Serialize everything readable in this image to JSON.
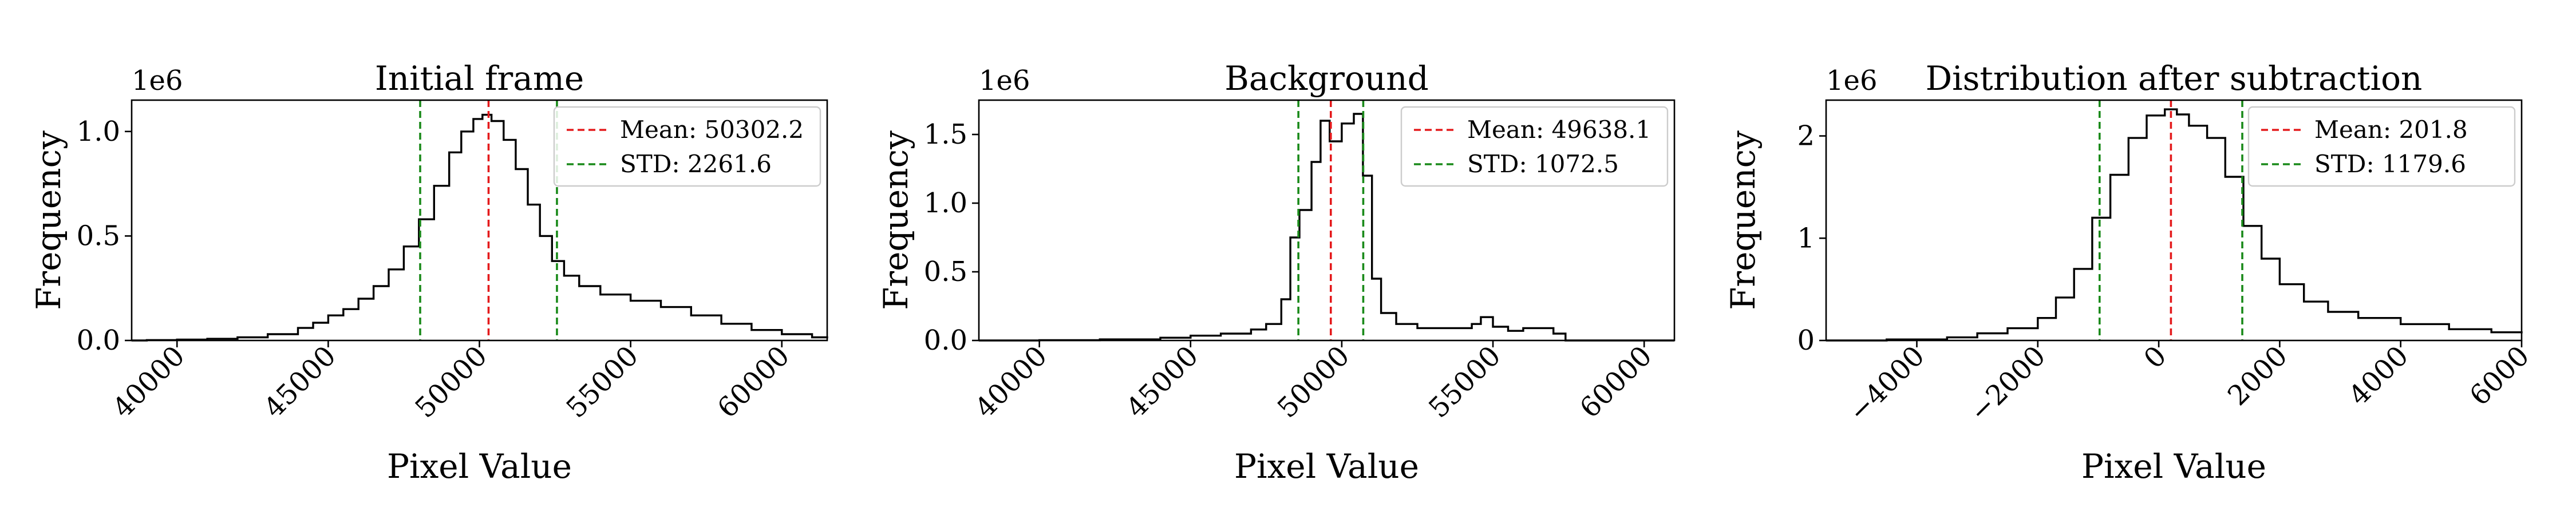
{
  "chart_data": [
    {
      "type": "histogram",
      "title": "Initial frame",
      "xlabel": "Pixel Value",
      "ylabel": "Frequency",
      "y_offset_text": "1e6",
      "xlim": [
        38500,
        61500
      ],
      "ylim": [
        0,
        1.15
      ],
      "xticks": [
        40000,
        45000,
        50000,
        55000,
        60000
      ],
      "xtick_labels": [
        "40000",
        "45000",
        "50000",
        "55000",
        "60000"
      ],
      "yticks": [
        0,
        0.5,
        1.0
      ],
      "ytick_labels": [
        "0.0",
        "0.5",
        "1.0"
      ],
      "xtick_rotation": 45,
      "histogram": {
        "color": "#000000",
        "points": [
          [
            38500,
            0.0
          ],
          [
            39000,
            0.002
          ],
          [
            40000,
            0.004
          ],
          [
            41000,
            0.008
          ],
          [
            42000,
            0.015
          ],
          [
            43000,
            0.03
          ],
          [
            44000,
            0.06
          ],
          [
            44500,
            0.085
          ],
          [
            45000,
            0.12
          ],
          [
            45500,
            0.15
          ],
          [
            46000,
            0.2
          ],
          [
            46500,
            0.26
          ],
          [
            47000,
            0.34
          ],
          [
            47500,
            0.45
          ],
          [
            48000,
            0.58
          ],
          [
            48500,
            0.74
          ],
          [
            49000,
            0.9
          ],
          [
            49400,
            1.0
          ],
          [
            49800,
            1.06
          ],
          [
            50100,
            1.08
          ],
          [
            50400,
            1.05
          ],
          [
            50800,
            0.96
          ],
          [
            51200,
            0.82
          ],
          [
            51600,
            0.65
          ],
          [
            52000,
            0.5
          ],
          [
            52400,
            0.38
          ],
          [
            52800,
            0.31
          ],
          [
            53300,
            0.26
          ],
          [
            54000,
            0.22
          ],
          [
            55000,
            0.19
          ],
          [
            56000,
            0.16
          ],
          [
            57000,
            0.12
          ],
          [
            58000,
            0.08
          ],
          [
            59000,
            0.05
          ],
          [
            60000,
            0.03
          ],
          [
            61000,
            0.015
          ],
          [
            61500,
            0.01
          ]
        ]
      },
      "vlines": [
        {
          "label": "Mean: 50302.2",
          "x": 50302.2,
          "color": "#e41a1c",
          "style": "dashed"
        },
        {
          "x": 48040.6,
          "color": "#1a8a1a",
          "style": "dashed"
        },
        {
          "label": "STD: 2261.6",
          "x": 52563.8,
          "color": "#1a8a1a",
          "style": "dashed"
        }
      ],
      "legend": {
        "placement": "upper right",
        "entries": [
          {
            "label": "Mean: 50302.2",
            "color": "#e41a1c",
            "style": "dashed"
          },
          {
            "label": "STD: 2261.6",
            "color": "#1a8a1a",
            "style": "dashed"
          }
        ]
      }
    },
    {
      "type": "histogram",
      "title": "Background",
      "xlabel": "Pixel Value",
      "ylabel": "Frequency",
      "y_offset_text": "1e6",
      "xlim": [
        38000,
        61000
      ],
      "ylim": [
        0,
        1.75
      ],
      "xticks": [
        40000,
        45000,
        50000,
        55000,
        60000
      ],
      "xtick_labels": [
        "40000",
        "45000",
        "50000",
        "55000",
        "60000"
      ],
      "yticks": [
        0,
        0.5,
        1.0,
        1.5
      ],
      "ytick_labels": [
        "0.0",
        "0.5",
        "1.0",
        "1.5"
      ],
      "xtick_rotation": 45,
      "histogram": {
        "color": "#000000",
        "points": [
          [
            38000,
            0.0
          ],
          [
            40000,
            0.002
          ],
          [
            42000,
            0.008
          ],
          [
            44000,
            0.02
          ],
          [
            45000,
            0.035
          ],
          [
            46000,
            0.05
          ],
          [
            47000,
            0.08
          ],
          [
            47500,
            0.12
          ],
          [
            48000,
            0.3
          ],
          [
            48300,
            0.75
          ],
          [
            48600,
            0.95
          ],
          [
            49000,
            1.3
          ],
          [
            49300,
            1.6
          ],
          [
            49600,
            1.45
          ],
          [
            50000,
            1.58
          ],
          [
            50400,
            1.65
          ],
          [
            50700,
            1.2
          ],
          [
            51000,
            0.45
          ],
          [
            51300,
            0.2
          ],
          [
            51800,
            0.12
          ],
          [
            52500,
            0.09
          ],
          [
            53500,
            0.09
          ],
          [
            54300,
            0.12
          ],
          [
            54600,
            0.17
          ],
          [
            55000,
            0.1
          ],
          [
            55500,
            0.07
          ],
          [
            56000,
            0.09
          ],
          [
            56500,
            0.09
          ],
          [
            57000,
            0.05
          ],
          [
            57400,
            0.0
          ],
          [
            61000,
            0.0
          ]
        ]
      },
      "vlines": [
        {
          "label": "Mean: 49638.1",
          "x": 49638.1,
          "color": "#e41a1c",
          "style": "dashed"
        },
        {
          "x": 48565.6,
          "color": "#1a8a1a",
          "style": "dashed"
        },
        {
          "label": "STD: 1072.5",
          "x": 50710.6,
          "color": "#1a8a1a",
          "style": "dashed"
        }
      ],
      "legend": {
        "placement": "upper right",
        "entries": [
          {
            "label": "Mean: 49638.1",
            "color": "#e41a1c",
            "style": "dashed"
          },
          {
            "label": "STD: 1072.5",
            "color": "#1a8a1a",
            "style": "dashed"
          }
        ]
      }
    },
    {
      "type": "histogram",
      "title": "Distribution after subtraction",
      "xlabel": "Pixel Value",
      "ylabel": "Frequency",
      "y_offset_text": "1e6",
      "xlim": [
        -5500,
        6000
      ],
      "ylim": [
        0,
        2.35
      ],
      "xticks": [
        -4000,
        -2000,
        0,
        2000,
        4000,
        6000
      ],
      "xtick_labels": [
        "−4000",
        "−2000",
        "0",
        "2000",
        "4000",
        "6000"
      ],
      "yticks": [
        0,
        1,
        2
      ],
      "ytick_labels": [
        "0",
        "1",
        "2"
      ],
      "xtick_rotation": 45,
      "histogram": {
        "color": "#000000",
        "points": [
          [
            -5500,
            0.0
          ],
          [
            -4500,
            0.01
          ],
          [
            -3500,
            0.03
          ],
          [
            -3000,
            0.07
          ],
          [
            -2500,
            0.12
          ],
          [
            -2000,
            0.22
          ],
          [
            -1700,
            0.42
          ],
          [
            -1400,
            0.7
          ],
          [
            -1100,
            1.2
          ],
          [
            -800,
            1.62
          ],
          [
            -500,
            1.98
          ],
          [
            -200,
            2.2
          ],
          [
            100,
            2.26
          ],
          [
            300,
            2.21
          ],
          [
            500,
            2.1
          ],
          [
            800,
            1.98
          ],
          [
            1100,
            1.6
          ],
          [
            1400,
            1.12
          ],
          [
            1700,
            0.8
          ],
          [
            2000,
            0.55
          ],
          [
            2400,
            0.38
          ],
          [
            2800,
            0.28
          ],
          [
            3300,
            0.22
          ],
          [
            4000,
            0.16
          ],
          [
            4800,
            0.11
          ],
          [
            5500,
            0.08
          ],
          [
            6000,
            0.07
          ]
        ]
      },
      "vlines": [
        {
          "label": "Mean: 201.8",
          "x": 201.8,
          "color": "#e41a1c",
          "style": "dashed"
        },
        {
          "x": -977.8,
          "color": "#1a8a1a",
          "style": "dashed"
        },
        {
          "label": "STD: 1179.6",
          "x": 1381.4,
          "color": "#1a8a1a",
          "style": "dashed"
        }
      ],
      "legend": {
        "placement": "upper right",
        "entries": [
          {
            "label": "Mean: 201.8",
            "color": "#e41a1c",
            "style": "dashed"
          },
          {
            "label": "STD: 1179.6",
            "color": "#1a8a1a",
            "style": "dashed"
          }
        ]
      }
    }
  ]
}
